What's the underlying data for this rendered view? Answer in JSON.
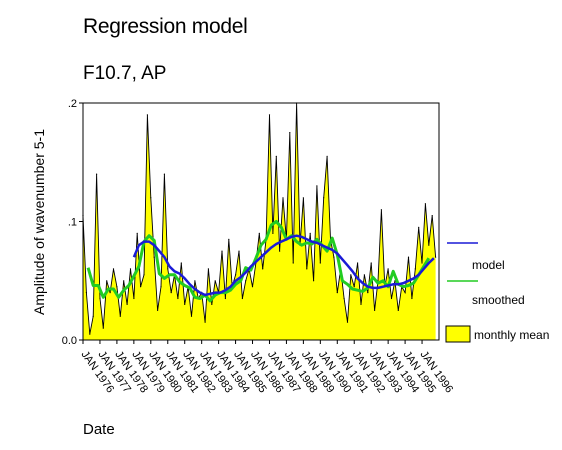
{
  "chart_data": {
    "type": "area",
    "title": "Regression model",
    "subtitle": "F10.7, AP",
    "xlabel": "Date",
    "ylabel": "Amplitude of wavenumber 5-1",
    "ylim": [
      0,
      0.2
    ],
    "xlim": [
      1976.0,
      1997.0
    ],
    "yticks": [
      {
        "value": 0.0,
        "label": "0.0"
      },
      {
        "value": 0.1,
        "label": ".1"
      },
      {
        "value": 0.2,
        "label": ".2"
      }
    ],
    "xticks": [
      "JAN 1976",
      "JAN 1977",
      "JAN 1978",
      "JAN 1979",
      "JAN 1980",
      "JAN 1981",
      "JAN 1982",
      "JAN 1983",
      "JAN 1984",
      "JAN 1985",
      "JAN 1986",
      "JAN 1987",
      "JAN 1988",
      "JAN 1989",
      "JAN 1990",
      "JAN 1991",
      "JAN 1992",
      "JAN 1993",
      "JAN 1994",
      "JAN 1995",
      "JAN 1996"
    ],
    "legend": {
      "placement": "right",
      "items": [
        {
          "label": "model",
          "color": "#1a1ad6",
          "kind": "line"
        },
        {
          "label": "smoothed",
          "color": "#22cc22",
          "kind": "line"
        },
        {
          "label": "monthly mean",
          "color": "#ffff00",
          "kind": "area"
        }
      ]
    },
    "series": [
      {
        "name": "monthly mean",
        "color": "#ffff00",
        "x": [
          1976.0,
          1976.2,
          1976.4,
          1976.6,
          1976.8,
          1977.0,
          1977.2,
          1977.4,
          1977.6,
          1977.8,
          1978.0,
          1978.2,
          1978.4,
          1978.6,
          1978.8,
          1979.0,
          1979.2,
          1979.4,
          1979.6,
          1979.8,
          1980.0,
          1980.2,
          1980.4,
          1980.6,
          1980.8,
          1981.0,
          1981.2,
          1981.4,
          1981.6,
          1981.8,
          1982.0,
          1982.2,
          1982.4,
          1982.6,
          1982.8,
          1983.0,
          1983.2,
          1983.4,
          1983.6,
          1983.8,
          1984.0,
          1984.2,
          1984.4,
          1984.6,
          1984.8,
          1985.0,
          1985.2,
          1985.4,
          1985.6,
          1985.8,
          1986.0,
          1986.2,
          1986.4,
          1986.6,
          1986.8,
          1987.0,
          1987.2,
          1987.4,
          1987.6,
          1987.8,
          1988.0,
          1988.2,
          1988.4,
          1988.6,
          1988.8,
          1989.0,
          1989.2,
          1989.4,
          1989.6,
          1989.8,
          1990.0,
          1990.2,
          1990.4,
          1990.6,
          1990.8,
          1991.0,
          1991.2,
          1991.4,
          1991.6,
          1991.8,
          1992.0,
          1992.2,
          1992.4,
          1992.6,
          1992.8,
          1993.0,
          1993.2,
          1993.4,
          1993.6,
          1993.8,
          1994.0,
          1994.2,
          1994.4,
          1994.6,
          1994.8,
          1995.0,
          1995.2,
          1995.4,
          1995.6,
          1995.8,
          1996.0,
          1996.2,
          1996.4,
          1996.6,
          1996.8
        ],
        "values": [
          0.105,
          0.04,
          0.005,
          0.02,
          0.14,
          0.035,
          0.01,
          0.05,
          0.04,
          0.06,
          0.045,
          0.02,
          0.05,
          0.03,
          0.06,
          0.035,
          0.09,
          0.045,
          0.055,
          0.19,
          0.12,
          0.07,
          0.025,
          0.045,
          0.14,
          0.06,
          0.04,
          0.055,
          0.035,
          0.065,
          0.03,
          0.045,
          0.02,
          0.05,
          0.035,
          0.04,
          0.015,
          0.06,
          0.03,
          0.05,
          0.04,
          0.075,
          0.035,
          0.085,
          0.045,
          0.055,
          0.075,
          0.035,
          0.05,
          0.06,
          0.045,
          0.065,
          0.09,
          0.06,
          0.085,
          0.19,
          0.09,
          0.155,
          0.075,
          0.12,
          0.085,
          0.175,
          0.065,
          0.2,
          0.08,
          0.12,
          0.06,
          0.09,
          0.05,
          0.13,
          0.065,
          0.12,
          0.155,
          0.085,
          0.07,
          0.04,
          0.06,
          0.035,
          0.015,
          0.055,
          0.045,
          0.065,
          0.03,
          0.055,
          0.04,
          0.065,
          0.025,
          0.05,
          0.11,
          0.045,
          0.06,
          0.035,
          0.05,
          0.025,
          0.045,
          0.04,
          0.07,
          0.035,
          0.06,
          0.095,
          0.065,
          0.115,
          0.08,
          0.105,
          0.07
        ]
      },
      {
        "name": "model",
        "color": "#1a1ad6",
        "x": [
          1979.0,
          1979.3,
          1979.6,
          1979.9,
          1980.2,
          1980.5,
          1980.8,
          1981.1,
          1981.4,
          1981.7,
          1982.0,
          1982.3,
          1982.6,
          1982.9,
          1983.2,
          1983.5,
          1983.8,
          1984.1,
          1984.4,
          1984.7,
          1985.0,
          1985.3,
          1985.6,
          1985.9,
          1986.2,
          1986.5,
          1986.8,
          1987.1,
          1987.4,
          1987.7,
          1988.0,
          1988.3,
          1988.6,
          1988.9,
          1989.2,
          1989.5,
          1989.8,
          1990.1,
          1990.4,
          1990.7,
          1991.0,
          1991.3,
          1991.6,
          1991.9,
          1992.2,
          1992.5,
          1992.8,
          1993.1,
          1993.4,
          1993.7,
          1994.0,
          1994.3,
          1994.6,
          1994.9,
          1995.2,
          1995.5,
          1995.8,
          1996.1,
          1996.4,
          1996.7
        ],
        "values": [
          0.07,
          0.08,
          0.083,
          0.083,
          0.08,
          0.075,
          0.07,
          0.062,
          0.058,
          0.056,
          0.052,
          0.047,
          0.043,
          0.04,
          0.038,
          0.039,
          0.04,
          0.04,
          0.042,
          0.045,
          0.05,
          0.053,
          0.057,
          0.062,
          0.066,
          0.07,
          0.074,
          0.078,
          0.081,
          0.083,
          0.085,
          0.087,
          0.088,
          0.087,
          0.085,
          0.083,
          0.082,
          0.08,
          0.078,
          0.076,
          0.073,
          0.068,
          0.063,
          0.058,
          0.052,
          0.048,
          0.045,
          0.044,
          0.044,
          0.045,
          0.046,
          0.047,
          0.047,
          0.048,
          0.05,
          0.052,
          0.055,
          0.06,
          0.065,
          0.069
        ]
      },
      {
        "name": "smoothed",
        "color": "#22cc22",
        "x": [
          1976.3,
          1976.6,
          1976.9,
          1977.2,
          1977.5,
          1977.8,
          1978.1,
          1978.4,
          1978.7,
          1979.0,
          1979.3,
          1979.6,
          1979.9,
          1980.2,
          1980.5,
          1980.8,
          1981.1,
          1981.4,
          1981.7,
          1982.0,
          1982.3,
          1982.6,
          1982.9,
          1983.2,
          1983.5,
          1983.8,
          1984.1,
          1984.4,
          1984.7,
          1985.0,
          1985.3,
          1985.6,
          1985.9,
          1986.2,
          1986.5,
          1986.8,
          1987.1,
          1987.4,
          1987.7,
          1988.0,
          1988.3,
          1988.6,
          1988.9,
          1989.2,
          1989.5,
          1989.8,
          1990.1,
          1990.4,
          1990.7,
          1991.0,
          1991.3,
          1991.6,
          1991.9,
          1992.2,
          1992.5,
          1992.8,
          1993.1,
          1993.4,
          1993.7,
          1994.0,
          1994.3,
          1994.6,
          1994.9,
          1995.2,
          1995.5,
          1995.8,
          1996.1,
          1996.4
        ],
        "values": [
          0.061,
          0.046,
          0.046,
          0.036,
          0.043,
          0.043,
          0.036,
          0.042,
          0.046,
          0.054,
          0.062,
          0.083,
          0.088,
          0.084,
          0.056,
          0.052,
          0.055,
          0.055,
          0.049,
          0.046,
          0.044,
          0.036,
          0.035,
          0.038,
          0.033,
          0.038,
          0.04,
          0.04,
          0.042,
          0.047,
          0.05,
          0.061,
          0.059,
          0.069,
          0.08,
          0.085,
          0.097,
          0.1,
          0.095,
          0.085,
          0.088,
          0.083,
          0.08,
          0.082,
          0.081,
          0.085,
          0.08,
          0.075,
          0.086,
          0.072,
          0.05,
          0.047,
          0.043,
          0.042,
          0.041,
          0.044,
          0.053,
          0.048,
          0.05,
          0.045,
          0.058,
          0.047,
          0.045,
          0.046,
          0.048,
          0.055,
          0.062,
          0.069
        ]
      }
    ]
  }
}
